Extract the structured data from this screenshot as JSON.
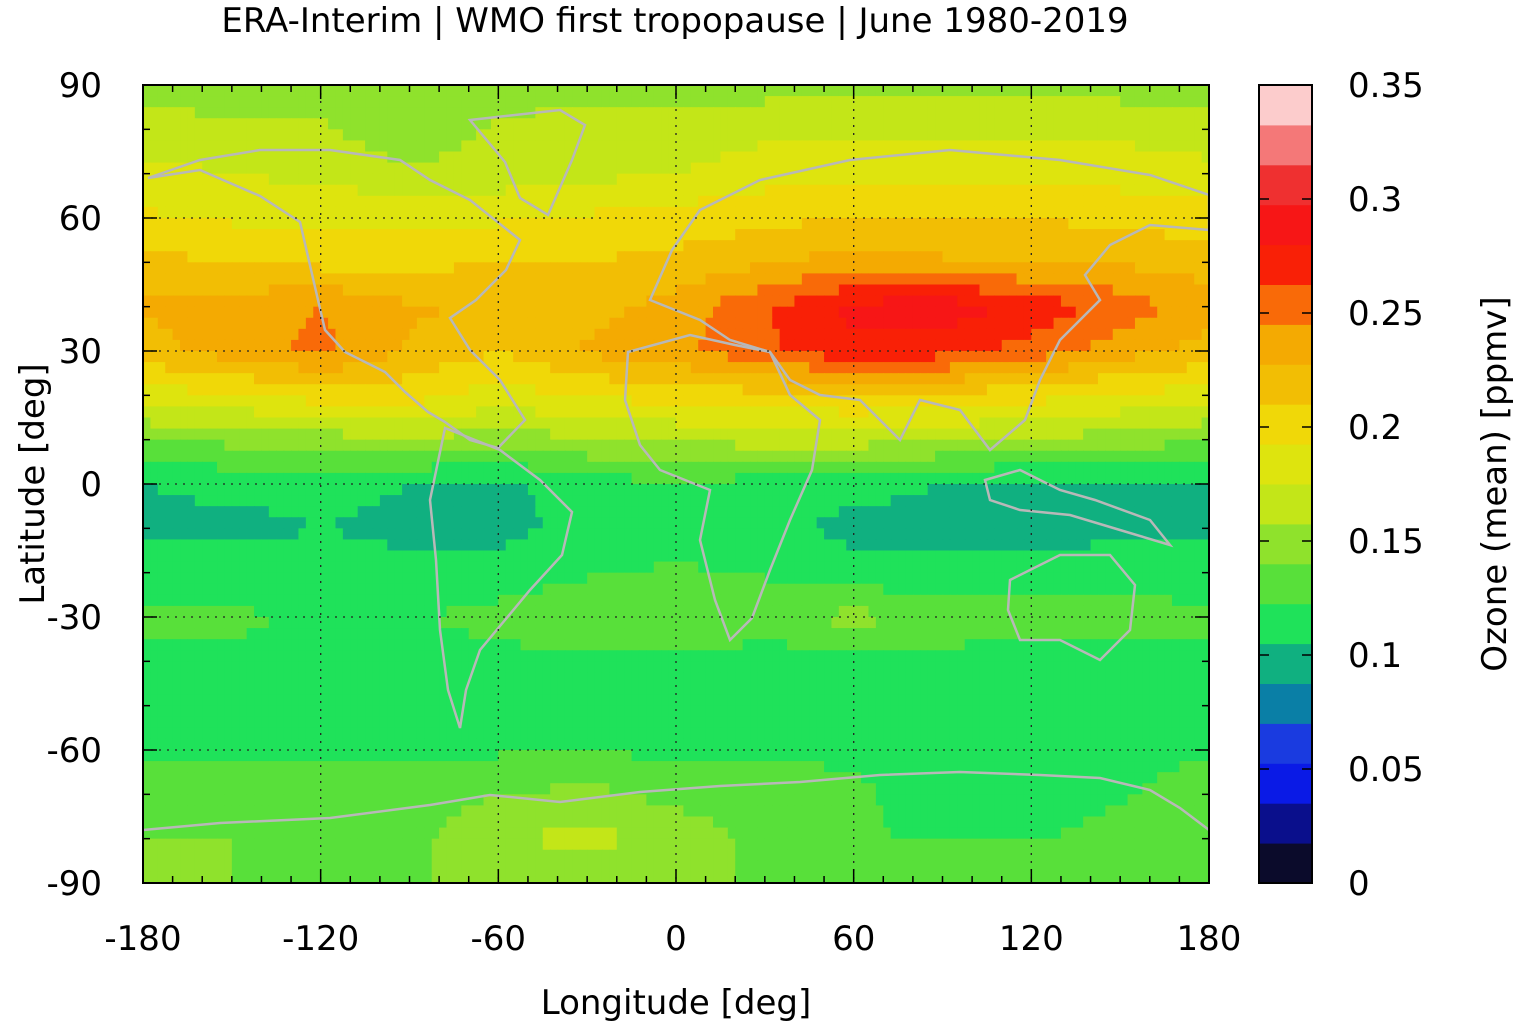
{
  "chart_data": {
    "type": "heatmap",
    "title": "ERA-Interim | WMO first tropopause | June 1980-2019",
    "xlabel": "Longitude [deg]",
    "ylabel": "Latitude [deg]",
    "colorbar_label": "Ozone (mean) [ppmv]",
    "xlim": [
      -180,
      180
    ],
    "ylim": [
      -90,
      90
    ],
    "xticks": [
      "-180",
      "-120",
      "-60",
      "0",
      "60",
      "120",
      "180"
    ],
    "yticks": [
      "90",
      "60",
      "30",
      "0",
      "-30",
      "-60",
      "-90"
    ],
    "colorbar_ticks": [
      "0.35",
      "0.3",
      "0.25",
      "0.2",
      "0.15",
      "0.1",
      "0.05",
      "0"
    ],
    "colorbar_range": [
      0,
      0.35
    ],
    "colorbar_levels": [
      0,
      0.0175,
      0.035,
      0.0525,
      0.07,
      0.0875,
      0.105,
      0.1225,
      0.14,
      0.1575,
      0.175,
      0.1925,
      0.21,
      0.2275,
      0.245,
      0.2625,
      0.28,
      0.2975,
      0.315,
      0.3325,
      0.35
    ],
    "colorbar_colors": [
      "#0b0b2b",
      "#0a0f8c",
      "#0a1ae6",
      "#1a3be0",
      "#0a7fa6",
      "#10b080",
      "#1fe25a",
      "#58e03a",
      "#8fe22c",
      "#c3e618",
      "#dee40e",
      "#f0d808",
      "#f2be04",
      "#f4aa02",
      "#f96a08",
      "#f92006",
      "#f71616",
      "#ef3030",
      "#f47878",
      "#fccccc"
    ],
    "grid": "dotted",
    "latitudes": [
      90,
      80,
      70,
      60,
      50,
      40,
      30,
      20,
      10,
      0,
      -10,
      -20,
      -30,
      -40,
      -50,
      -60,
      -70,
      -80,
      -90
    ],
    "longitudes": [
      -180,
      -150,
      -120,
      -90,
      -60,
      -30,
      0,
      30,
      60,
      90,
      120,
      150,
      180
    ],
    "ozone_ppmv": [
      [
        0.15,
        0.15,
        0.15,
        0.15,
        0.15,
        0.15,
        0.15,
        0.15,
        0.15,
        0.15,
        0.15,
        0.15,
        0.15
      ],
      [
        0.165,
        0.16,
        0.16,
        0.145,
        0.16,
        0.165,
        0.165,
        0.17,
        0.17,
        0.17,
        0.17,
        0.17,
        0.165
      ],
      [
        0.18,
        0.175,
        0.17,
        0.16,
        0.165,
        0.17,
        0.175,
        0.185,
        0.185,
        0.19,
        0.185,
        0.185,
        0.18
      ],
      [
        0.195,
        0.19,
        0.19,
        0.19,
        0.19,
        0.195,
        0.2,
        0.205,
        0.21,
        0.21,
        0.21,
        0.205,
        0.2
      ],
      [
        0.215,
        0.21,
        0.205,
        0.205,
        0.21,
        0.21,
        0.215,
        0.225,
        0.235,
        0.23,
        0.225,
        0.225,
        0.22
      ],
      [
        0.23,
        0.235,
        0.245,
        0.23,
        0.225,
        0.22,
        0.235,
        0.26,
        0.285,
        0.29,
        0.275,
        0.255,
        0.235
      ],
      [
        0.22,
        0.235,
        0.25,
        0.225,
        0.21,
        0.23,
        0.24,
        0.26,
        0.275,
        0.27,
        0.255,
        0.235,
        0.22
      ],
      [
        0.185,
        0.19,
        0.2,
        0.2,
        0.185,
        0.195,
        0.2,
        0.205,
        0.21,
        0.205,
        0.2,
        0.19,
        0.185
      ],
      [
        0.14,
        0.145,
        0.15,
        0.155,
        0.15,
        0.155,
        0.16,
        0.165,
        0.165,
        0.16,
        0.155,
        0.15,
        0.14
      ],
      [
        0.105,
        0.11,
        0.11,
        0.105,
        0.1,
        0.115,
        0.12,
        0.115,
        0.11,
        0.105,
        0.1,
        0.1,
        0.105
      ],
      [
        0.1,
        0.1,
        0.105,
        0.1,
        0.1,
        0.11,
        0.115,
        0.11,
        0.1,
        0.1,
        0.1,
        0.1,
        0.1
      ],
      [
        0.115,
        0.115,
        0.115,
        0.11,
        0.11,
        0.12,
        0.125,
        0.12,
        0.11,
        0.11,
        0.11,
        0.115,
        0.115
      ],
      [
        0.125,
        0.125,
        0.12,
        0.12,
        0.13,
        0.14,
        0.135,
        0.14,
        0.145,
        0.14,
        0.13,
        0.13,
        0.125
      ],
      [
        0.12,
        0.12,
        0.115,
        0.115,
        0.115,
        0.12,
        0.12,
        0.11,
        0.115,
        0.115,
        0.11,
        0.115,
        0.12
      ],
      [
        0.115,
        0.115,
        0.115,
        0.115,
        0.115,
        0.115,
        0.115,
        0.115,
        0.115,
        0.115,
        0.115,
        0.115,
        0.115
      ],
      [
        0.12,
        0.12,
        0.12,
        0.12,
        0.12,
        0.12,
        0.12,
        0.12,
        0.12,
        0.12,
        0.12,
        0.12,
        0.12
      ],
      [
        0.13,
        0.135,
        0.135,
        0.13,
        0.14,
        0.145,
        0.135,
        0.13,
        0.125,
        0.115,
        0.11,
        0.12,
        0.13
      ],
      [
        0.14,
        0.14,
        0.135,
        0.135,
        0.155,
        0.165,
        0.15,
        0.135,
        0.125,
        0.12,
        0.12,
        0.13,
        0.14
      ],
      [
        0.14,
        0.14,
        0.14,
        0.14,
        0.14,
        0.14,
        0.14,
        0.14,
        0.14,
        0.14,
        0.14,
        0.14,
        0.14
      ]
    ]
  }
}
